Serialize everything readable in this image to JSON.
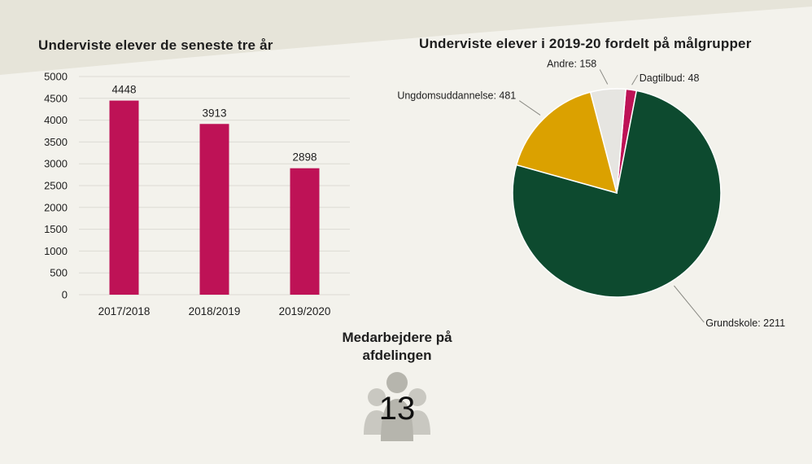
{
  "chart_data": [
    {
      "type": "bar",
      "title": "Underviste elever de seneste tre år",
      "categories": [
        "2017/2018",
        "2018/2019",
        "2019/2020"
      ],
      "values": [
        4448,
        3913,
        2898
      ],
      "xlabel": "",
      "ylabel": "",
      "ylim": [
        0,
        5000
      ],
      "yticks": [
        0,
        500,
        1000,
        1500,
        2000,
        2500,
        3000,
        3500,
        4000,
        4500,
        5000
      ],
      "grid": true,
      "legend": "none",
      "color": "#be1256"
    },
    {
      "type": "pie",
      "title": "Underviste elever i 2019-20 fordelt på målgrupper",
      "slices": [
        {
          "label": "Dagtilbud",
          "value": 48,
          "color": "#be1256"
        },
        {
          "label": "Grundskole",
          "value": 2211,
          "color": "#0d4a2f"
        },
        {
          "label": "Ungdomsuddannelse",
          "value": 481,
          "color": "#dba100"
        },
        {
          "label": "Andre",
          "value": 158,
          "color": "#e6e5e1"
        }
      ],
      "legend": "none",
      "data_labels": "outside-with-leader-lines"
    }
  ],
  "staff": {
    "label": "Medarbejdere på afdelingen",
    "count": "13",
    "icon": "people-group-icon"
  }
}
